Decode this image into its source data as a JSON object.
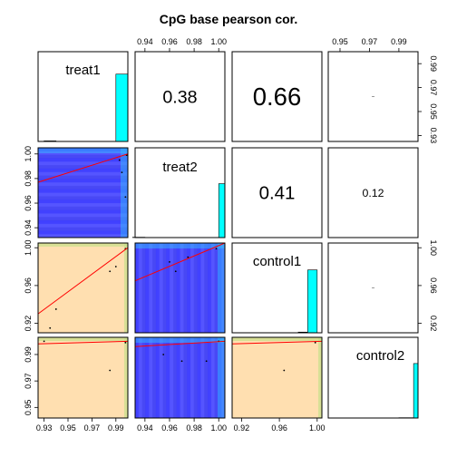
{
  "chart_data": {
    "type": "scatter-matrix",
    "title": "CpG base pearson cor.",
    "variables": [
      "treat1",
      "treat2",
      "control1",
      "control2"
    ],
    "correlations": [
      {
        "row": 0,
        "col": 1,
        "label": "0.38",
        "value": 0.38
      },
      {
        "row": 0,
        "col": 2,
        "label": "0.66",
        "value": 0.66
      },
      {
        "row": 0,
        "col": 3,
        "label": "",
        "value": 0.05
      },
      {
        "row": 1,
        "col": 2,
        "label": "0.41",
        "value": 0.41
      },
      {
        "row": 1,
        "col": 3,
        "label": "0.12",
        "value": 0.12
      },
      {
        "row": 2,
        "col": 3,
        "label": "",
        "value": 0.05
      }
    ],
    "axes": {
      "top": [
        {
          "col": 1,
          "ticks": [
            "0.94",
            "0.96",
            "0.98",
            "1.00"
          ],
          "values": [
            0.94,
            0.96,
            0.98,
            1.0
          ],
          "range": [
            0.932,
            1.005
          ]
        },
        {
          "col": 3,
          "ticks": [
            "0.95",
            "0.97",
            "0.99"
          ],
          "values": [
            0.95,
            0.97,
            0.99
          ],
          "range": [
            0.942,
            1.003
          ]
        }
      ],
      "bottom": [
        {
          "col": 0,
          "ticks": [
            "0.93",
            "0.95",
            "0.97",
            "0.99"
          ],
          "values": [
            0.93,
            0.95,
            0.97,
            0.99
          ],
          "range": [
            0.925,
            1.0
          ]
        },
        {
          "col": 1,
          "ticks": [
            "0.94",
            "0.96",
            "0.98",
            "1.00"
          ],
          "values": [
            0.94,
            0.96,
            0.98,
            1.0
          ],
          "range": [
            0.932,
            1.005
          ]
        },
        {
          "col": 2,
          "ticks": [
            "0.92",
            "0.96",
            "1.00"
          ],
          "values": [
            0.92,
            0.96,
            1.0
          ],
          "range": [
            0.91,
            1.005
          ]
        }
      ],
      "left": [
        {
          "row": 1,
          "ticks": [
            "1.00",
            "0.98",
            "0.96",
            "0.94"
          ],
          "values": [
            1.0,
            0.98,
            0.96,
            0.94
          ],
          "range": [
            0.932,
            1.005
          ]
        },
        {
          "row": 2,
          "ticks": [
            "1.00",
            "0.96",
            "0.92"
          ],
          "values": [
            1.0,
            0.96,
            0.92
          ],
          "range": [
            0.91,
            1.005
          ]
        },
        {
          "row": 3,
          "ticks": [
            "0.99",
            "0.97",
            "0.95"
          ],
          "values": [
            0.99,
            0.97,
            0.95
          ],
          "range": [
            0.942,
            1.003
          ]
        }
      ],
      "right": [
        {
          "row": 0,
          "ticks": [
            "0.99",
            "0.97",
            "0.95",
            "0.93"
          ],
          "values": [
            0.99,
            0.97,
            0.95,
            0.93
          ],
          "range": [
            0.925,
            1.0
          ]
        },
        {
          "row": 2,
          "ticks": [
            "1.00",
            "0.96",
            "0.92"
          ],
          "values": [
            1.0,
            0.96,
            0.92
          ],
          "range": [
            0.91,
            1.005
          ]
        }
      ]
    },
    "histograms": [
      {
        "var": "treat1",
        "bins": [
          0.93,
          0.94,
          0.95,
          0.96,
          0.97,
          0.98,
          0.99,
          1.0
        ],
        "counts": [
          0.5,
          0,
          0,
          0,
          0,
          0,
          60,
          0
        ],
        "ymax": 80
      },
      {
        "var": "treat2",
        "bins": [
          0.93,
          0.94,
          0.95,
          0.96,
          0.97,
          0.98,
          0.99,
          1.0
        ],
        "counts": [
          0.3,
          0,
          0,
          0,
          0,
          0,
          0,
          48
        ],
        "ymax": 80
      },
      {
        "var": "control1",
        "bins": [
          0.91,
          0.92,
          0.93,
          0.94,
          0.95,
          0.96,
          0.97,
          0.98,
          0.99,
          1.0
        ],
        "counts": [
          0,
          0,
          0,
          0,
          0,
          0,
          0,
          0.6,
          56
        ],
        "ymax": 80
      },
      {
        "var": "control2",
        "bins": [
          0.94,
          0.95,
          0.96,
          0.97,
          0.98,
          0.99,
          1.0
        ],
        "counts": [
          0,
          0,
          0,
          0,
          0,
          0.3,
          54
        ],
        "ymax": 80
      }
    ],
    "scatter_panels": [
      {
        "row": 1,
        "col": 0,
        "style": "density-blue",
        "fit": [
          [
            0.925,
            0.977
          ],
          [
            1.0,
            1.0
          ]
        ],
        "points": [
          [
            0.999,
            0.999
          ],
          [
            0.995,
            0.985
          ],
          [
            0.998,
            0.965
          ],
          [
            0.993,
            0.995
          ]
        ]
      },
      {
        "row": 2,
        "col": 0,
        "style": "density-orange",
        "fit": [
          [
            0.925,
            0.93
          ],
          [
            1.0,
            1.0
          ]
        ],
        "points": [
          [
            0.94,
            0.935
          ],
          [
            0.985,
            0.975
          ],
          [
            0.99,
            0.98
          ],
          [
            0.998,
            0.999
          ],
          [
            0.935,
            0.915
          ]
        ]
      },
      {
        "row": 2,
        "col": 1,
        "style": "density-blue",
        "fit": [
          [
            0.932,
            0.965
          ],
          [
            1.005,
            1.005
          ]
        ],
        "points": [
          [
            0.998,
            0.999
          ],
          [
            0.96,
            0.985
          ],
          [
            0.975,
            0.99
          ],
          [
            0.965,
            0.975
          ]
        ]
      },
      {
        "row": 3,
        "col": 0,
        "style": "density-orange",
        "fit": [
          [
            0.925,
            0.998
          ],
          [
            1.0,
            1.0
          ]
        ],
        "points": [
          [
            0.93,
            1.0
          ],
          [
            0.985,
            0.978
          ],
          [
            0.998,
            0.999
          ]
        ]
      },
      {
        "row": 3,
        "col": 1,
        "style": "density-blue",
        "fit": [
          [
            0.932,
            0.996
          ],
          [
            1.005,
            1.0
          ]
        ],
        "points": [
          [
            0.955,
            0.99
          ],
          [
            0.97,
            0.985
          ],
          [
            0.99,
            0.985
          ],
          [
            1.0,
            1.0
          ]
        ]
      },
      {
        "row": 3,
        "col": 2,
        "style": "density-orange",
        "fit": [
          [
            0.91,
            0.998
          ],
          [
            1.005,
            1.0
          ]
        ],
        "points": [
          [
            0.965,
            0.978
          ],
          [
            0.998,
            0.999
          ]
        ]
      }
    ],
    "colors": {
      "histogram_fill": "#00ffff",
      "fit_line": "#ff0000",
      "density_blue": "#4d4dff",
      "density_orange": "#ffdfb0"
    }
  }
}
